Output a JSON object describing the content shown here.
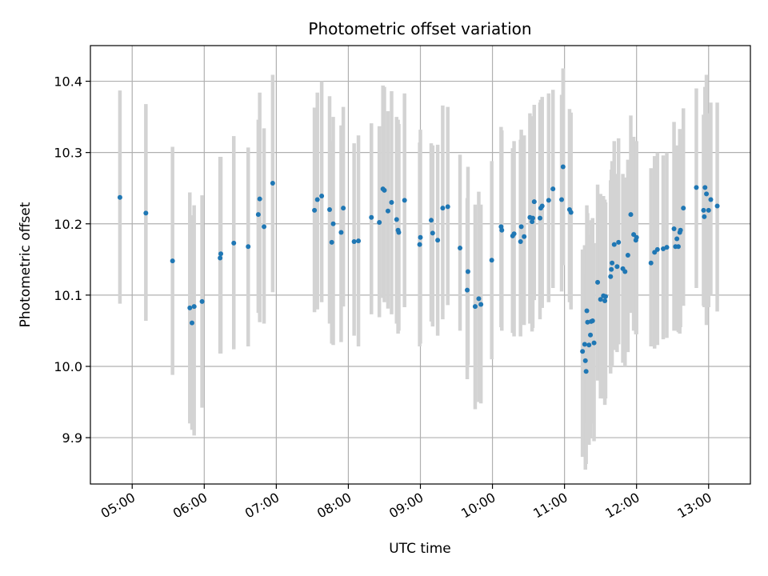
{
  "chart_data": {
    "type": "scatter",
    "title": "Photometric offset variation",
    "xlabel": "UTC time",
    "ylabel": "Photometric offset",
    "x_unit": "hours UTC",
    "xlim": [
      4.42,
      13.58
    ],
    "ylim": [
      9.835,
      10.45
    ],
    "grid": true,
    "colors": {
      "point": "#1f77b4",
      "errorbar": "#d3d3d3",
      "grid": "#b0b0b0"
    },
    "x_ticks": [
      {
        "value": 5,
        "label": "05:00"
      },
      {
        "value": 6,
        "label": "06:00"
      },
      {
        "value": 7,
        "label": "07:00"
      },
      {
        "value": 8,
        "label": "08:00"
      },
      {
        "value": 9,
        "label": "09:00"
      },
      {
        "value": 10,
        "label": "10:00"
      },
      {
        "value": 11,
        "label": "11:00"
      },
      {
        "value": 12,
        "label": "12:00"
      },
      {
        "value": 13,
        "label": "13:00"
      }
    ],
    "y_ticks": [
      {
        "value": 9.9,
        "label": "9.9"
      },
      {
        "value": 10.0,
        "label": "10.0"
      },
      {
        "value": 10.1,
        "label": "10.1"
      },
      {
        "value": 10.2,
        "label": "10.2"
      },
      {
        "value": 10.3,
        "label": "10.3"
      },
      {
        "value": 10.4,
        "label": "10.4"
      }
    ],
    "points": [
      [
        4.83,
        10.237,
        10.088,
        10.387
      ],
      [
        5.19,
        10.215,
        10.064,
        10.368
      ],
      [
        5.56,
        10.148,
        9.988,
        10.308
      ],
      [
        5.8,
        10.082,
        9.92,
        10.244
      ],
      [
        5.83,
        10.061,
        9.911,
        10.212
      ],
      [
        5.86,
        10.084,
        9.903,
        10.226
      ],
      [
        5.97,
        10.091,
        9.942,
        10.24
      ],
      [
        6.22,
        10.152,
        10.018,
        10.294
      ],
      [
        6.23,
        10.158,
        10.018,
        10.294
      ],
      [
        6.41,
        10.173,
        10.024,
        10.323
      ],
      [
        6.61,
        10.168,
        10.028,
        10.307
      ],
      [
        6.75,
        10.213,
        10.075,
        10.346
      ],
      [
        6.77,
        10.235,
        10.062,
        10.384
      ],
      [
        6.83,
        10.196,
        10.06,
        10.334
      ],
      [
        6.95,
        10.257,
        10.104,
        10.409
      ],
      [
        7.53,
        10.219,
        10.076,
        10.363
      ],
      [
        7.57,
        10.234,
        10.08,
        10.384
      ],
      [
        7.63,
        10.239,
        10.09,
        10.4
      ],
      [
        7.74,
        10.22,
        10.06,
        10.379
      ],
      [
        7.77,
        10.174,
        10.032,
        10.316
      ],
      [
        7.79,
        10.2,
        10.03,
        10.35
      ],
      [
        7.9,
        10.188,
        10.034,
        10.338
      ],
      [
        7.93,
        10.222,
        10.084,
        10.364
      ],
      [
        8.08,
        10.175,
        10.043,
        10.313
      ],
      [
        8.14,
        10.176,
        10.028,
        10.324
      ],
      [
        8.32,
        10.209,
        10.073,
        10.341
      ],
      [
        8.43,
        10.202,
        10.069,
        10.337
      ],
      [
        8.48,
        10.249,
        10.096,
        10.394
      ],
      [
        8.5,
        10.247,
        10.09,
        10.392
      ],
      [
        8.55,
        10.218,
        10.081,
        10.358
      ],
      [
        8.6,
        10.23,
        10.073,
        10.386
      ],
      [
        8.67,
        10.206,
        10.06,
        10.35
      ],
      [
        8.69,
        10.191,
        10.046,
        10.346
      ],
      [
        8.7,
        10.188,
        10.05,
        10.34
      ],
      [
        8.78,
        10.233,
        10.083,
        10.383
      ],
      [
        8.99,
        10.171,
        10.028,
        10.314
      ],
      [
        9.0,
        10.181,
        10.032,
        10.332
      ],
      [
        9.15,
        10.205,
        10.063,
        10.313
      ],
      [
        9.17,
        10.187,
        10.056,
        10.31
      ],
      [
        9.24,
        10.177,
        10.043,
        10.311
      ],
      [
        9.31,
        10.222,
        10.066,
        10.366
      ],
      [
        9.38,
        10.224,
        10.086,
        10.364
      ],
      [
        9.55,
        10.166,
        10.05,
        10.297
      ],
      [
        9.65,
        10.107,
        9.982,
        10.236
      ],
      [
        9.66,
        10.133,
        10.002,
        10.28
      ],
      [
        9.76,
        10.084,
        9.94,
        10.227
      ],
      [
        9.81,
        10.095,
        9.95,
        10.245
      ],
      [
        9.84,
        10.087,
        9.948,
        10.227
      ],
      [
        9.99,
        10.149,
        10.01,
        10.288
      ],
      [
        10.12,
        10.196,
        10.055,
        10.336
      ],
      [
        10.13,
        10.191,
        10.05,
        10.331
      ],
      [
        10.28,
        10.183,
        10.047,
        10.306
      ],
      [
        10.3,
        10.186,
        10.042,
        10.316
      ],
      [
        10.39,
        10.175,
        10.042,
        10.318
      ],
      [
        10.4,
        10.196,
        10.061,
        10.332
      ],
      [
        10.44,
        10.182,
        10.058,
        10.324
      ],
      [
        10.52,
        10.209,
        10.06,
        10.355
      ],
      [
        10.55,
        10.203,
        10.049,
        10.351
      ],
      [
        10.56,
        10.208,
        10.054,
        10.349
      ],
      [
        10.58,
        10.231,
        10.093,
        10.367
      ],
      [
        10.66,
        10.208,
        10.066,
        10.37
      ],
      [
        10.67,
        10.222,
        10.082,
        10.374
      ],
      [
        10.69,
        10.225,
        10.082,
        10.378
      ],
      [
        10.78,
        10.233,
        10.09,
        10.383
      ],
      [
        10.84,
        10.249,
        10.11,
        10.388
      ],
      [
        10.96,
        10.234,
        10.105,
        10.381
      ],
      [
        10.98,
        10.28,
        10.142,
        10.418
      ],
      [
        11.07,
        10.22,
        10.09,
        10.361
      ],
      [
        11.09,
        10.216,
        10.08,
        10.356
      ],
      [
        11.25,
        10.021,
        9.873,
        10.164
      ],
      [
        11.28,
        10.031,
        9.885,
        10.17
      ],
      [
        11.29,
        10.008,
        9.855,
        10.146
      ],
      [
        11.3,
        9.993,
        9.863,
        10.13
      ],
      [
        11.31,
        10.078,
        9.92,
        10.226
      ],
      [
        11.32,
        10.062,
        9.918,
        10.215
      ],
      [
        11.34,
        10.03,
        9.89,
        10.17
      ],
      [
        11.36,
        10.044,
        9.9,
        10.185
      ],
      [
        11.37,
        10.063,
        9.92,
        10.205
      ],
      [
        11.39,
        10.064,
        9.923,
        10.208
      ],
      [
        11.41,
        10.033,
        9.895,
        10.173
      ],
      [
        11.46,
        10.118,
        9.98,
        10.255
      ],
      [
        11.5,
        10.094,
        9.955,
        10.242
      ],
      [
        11.54,
        10.099,
        9.955,
        10.239
      ],
      [
        11.56,
        10.092,
        9.946,
        10.234
      ],
      [
        11.57,
        10.098,
        9.955,
        10.23
      ],
      [
        11.64,
        10.126,
        9.99,
        10.261
      ],
      [
        11.65,
        10.136,
        10.005,
        10.276
      ],
      [
        11.66,
        10.145,
        10.0,
        10.288
      ],
      [
        11.69,
        10.171,
        10.023,
        10.316
      ],
      [
        11.73,
        10.14,
        10.02,
        10.27
      ],
      [
        11.75,
        10.174,
        10.031,
        10.32
      ],
      [
        11.81,
        10.137,
        10.005,
        10.27
      ],
      [
        11.84,
        10.133,
        10.0,
        10.265
      ],
      [
        11.88,
        10.156,
        10.02,
        10.29
      ],
      [
        11.92,
        10.213,
        10.075,
        10.352
      ],
      [
        11.96,
        10.185,
        10.05,
        10.322
      ],
      [
        11.99,
        10.177,
        10.045,
        10.315
      ],
      [
        12.0,
        10.181,
        10.045,
        10.316
      ],
      [
        12.2,
        10.145,
        10.028,
        10.278
      ],
      [
        12.25,
        10.16,
        10.025,
        10.295
      ],
      [
        12.29,
        10.164,
        10.03,
        10.3
      ],
      [
        12.37,
        10.165,
        10.038,
        10.296
      ],
      [
        12.42,
        10.167,
        10.04,
        10.3
      ],
      [
        12.52,
        10.193,
        10.05,
        10.343
      ],
      [
        12.54,
        10.168,
        10.06,
        10.276
      ],
      [
        12.56,
        10.179,
        10.05,
        10.31
      ],
      [
        12.58,
        10.168,
        10.048,
        10.29
      ],
      [
        12.6,
        10.188,
        10.046,
        10.333
      ],
      [
        12.61,
        10.191,
        10.055,
        10.325
      ],
      [
        12.65,
        10.222,
        10.085,
        10.362
      ],
      [
        12.83,
        10.251,
        10.11,
        10.39
      ],
      [
        12.93,
        10.219,
        10.085,
        10.353
      ],
      [
        12.94,
        10.21,
        10.083,
        10.343
      ],
      [
        12.95,
        10.251,
        10.11,
        10.392
      ],
      [
        12.97,
        10.242,
        10.058,
        10.409
      ],
      [
        13.0,
        10.219,
        10.083,
        10.355
      ],
      [
        13.03,
        10.234,
        10.1,
        10.37
      ],
      [
        13.12,
        10.225,
        10.077,
        10.37
      ]
    ]
  }
}
